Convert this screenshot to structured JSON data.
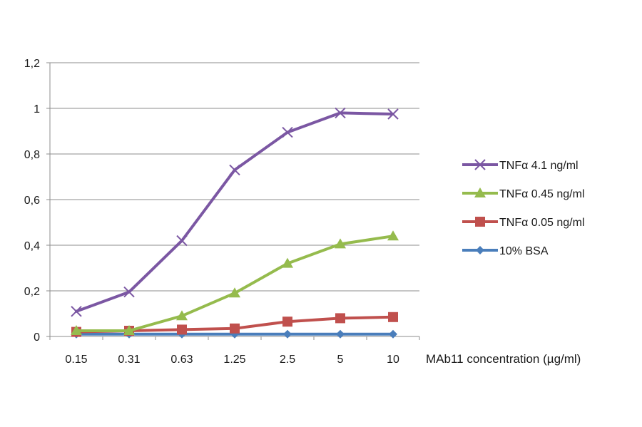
{
  "chart_data": {
    "type": "line",
    "title": "",
    "xlabel": "MAb11 concentration (µg/ml)",
    "ylabel": "",
    "categories": [
      "0.15",
      "0.31",
      "0.63",
      "1.25",
      "2.5",
      "5",
      "10"
    ],
    "yticks": [
      "0",
      "0,2",
      "0,4",
      "0,6",
      "0,8",
      "1",
      "1,2"
    ],
    "ylim": [
      0,
      1.2
    ],
    "grid": true,
    "legend_position": "right",
    "series": [
      {
        "name": "TNFα 4.1 ng/ml",
        "color": "#7b57a3",
        "marker": "x",
        "values": [
          0.11,
          0.195,
          0.42,
          0.73,
          0.895,
          0.98,
          0.975
        ]
      },
      {
        "name": "TNFα 0.45 ng/ml",
        "color": "#95bb4d",
        "marker": "triangle",
        "values": [
          0.025,
          0.025,
          0.09,
          0.19,
          0.32,
          0.405,
          0.44
        ]
      },
      {
        "name": "TNFα 0.05 ng/ml",
        "color": "#c0504d",
        "marker": "square",
        "values": [
          0.02,
          0.025,
          0.03,
          0.035,
          0.065,
          0.08,
          0.085
        ]
      },
      {
        "name": "10% BSA",
        "color": "#4a7ebb",
        "marker": "diamond",
        "values": [
          0.01,
          0.01,
          0.01,
          0.01,
          0.01,
          0.01,
          0.01
        ]
      }
    ]
  }
}
